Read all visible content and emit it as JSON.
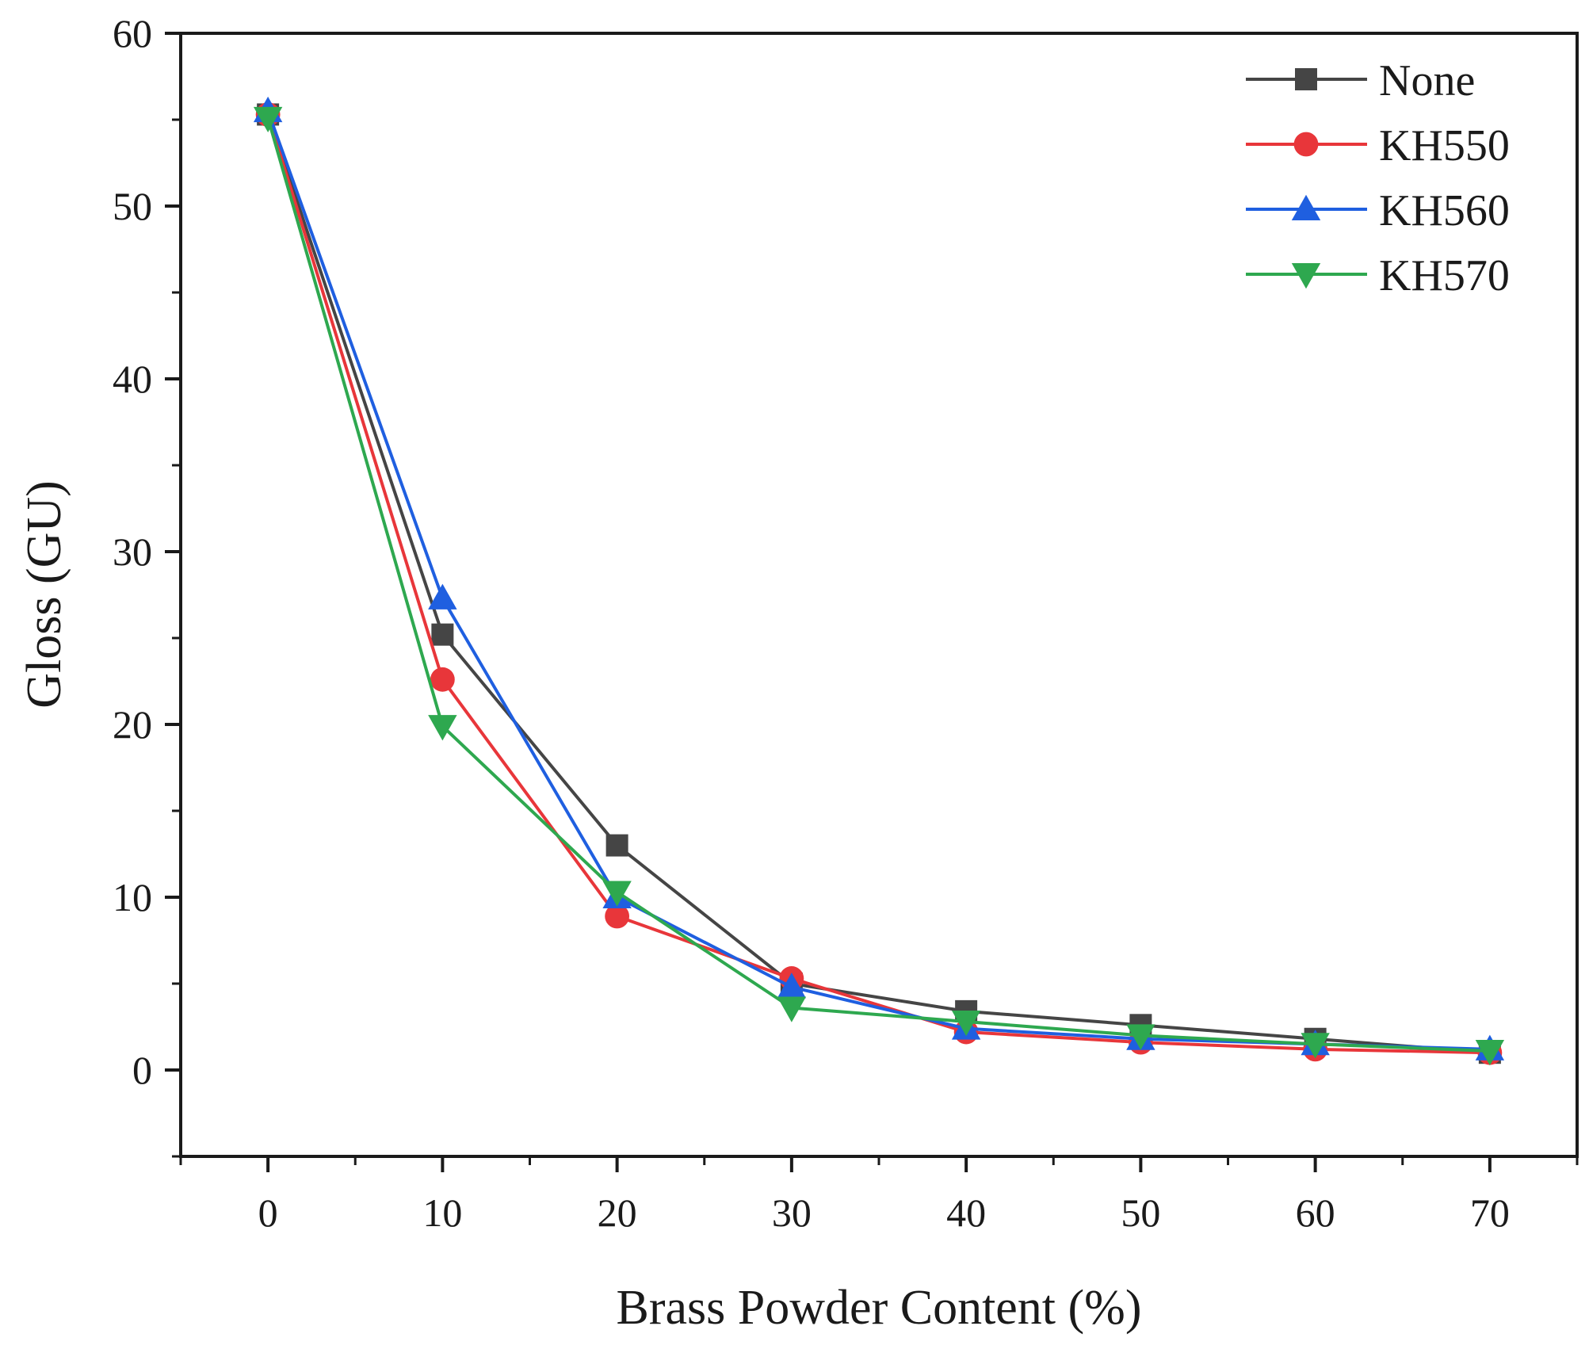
{
  "chart_data": {
    "type": "line",
    "title": "",
    "xlabel": "Brass Powder Content (%)",
    "ylabel": "Gloss (GU)",
    "xlim": [
      -5,
      75
    ],
    "ylim": [
      -5,
      60
    ],
    "x": [
      0,
      10,
      20,
      30,
      40,
      50,
      60,
      70
    ],
    "xticks": [
      0,
      10,
      20,
      30,
      40,
      50,
      60,
      70
    ],
    "yticks": [
      0,
      10,
      20,
      30,
      40,
      50,
      60
    ],
    "xtick_labels": [
      "0",
      "10",
      "20",
      "30",
      "40",
      "50",
      "60",
      "70"
    ],
    "ytick_labels": [
      "0",
      "10",
      "20",
      "30",
      "40",
      "50",
      "60"
    ],
    "grid": false,
    "legend_position": "top-right",
    "series": [
      {
        "name": "None",
        "color": "#454545",
        "marker": "square",
        "values": [
          55.3,
          25.2,
          13.0,
          5.0,
          3.4,
          2.6,
          1.8,
          1.0
        ]
      },
      {
        "name": "KH550",
        "color": "#e8363a",
        "marker": "circle",
        "values": [
          55.3,
          22.6,
          8.9,
          5.3,
          2.2,
          1.6,
          1.2,
          1.0
        ]
      },
      {
        "name": "KH560",
        "color": "#1f5fe0",
        "marker": "triangle-up",
        "values": [
          55.5,
          27.3,
          10.0,
          4.8,
          2.4,
          1.8,
          1.5,
          1.2
        ]
      },
      {
        "name": "KH570",
        "color": "#2ea84f",
        "marker": "triangle-down",
        "values": [
          55.1,
          19.9,
          10.3,
          3.6,
          2.8,
          2.0,
          1.5,
          1.1
        ]
      }
    ]
  }
}
